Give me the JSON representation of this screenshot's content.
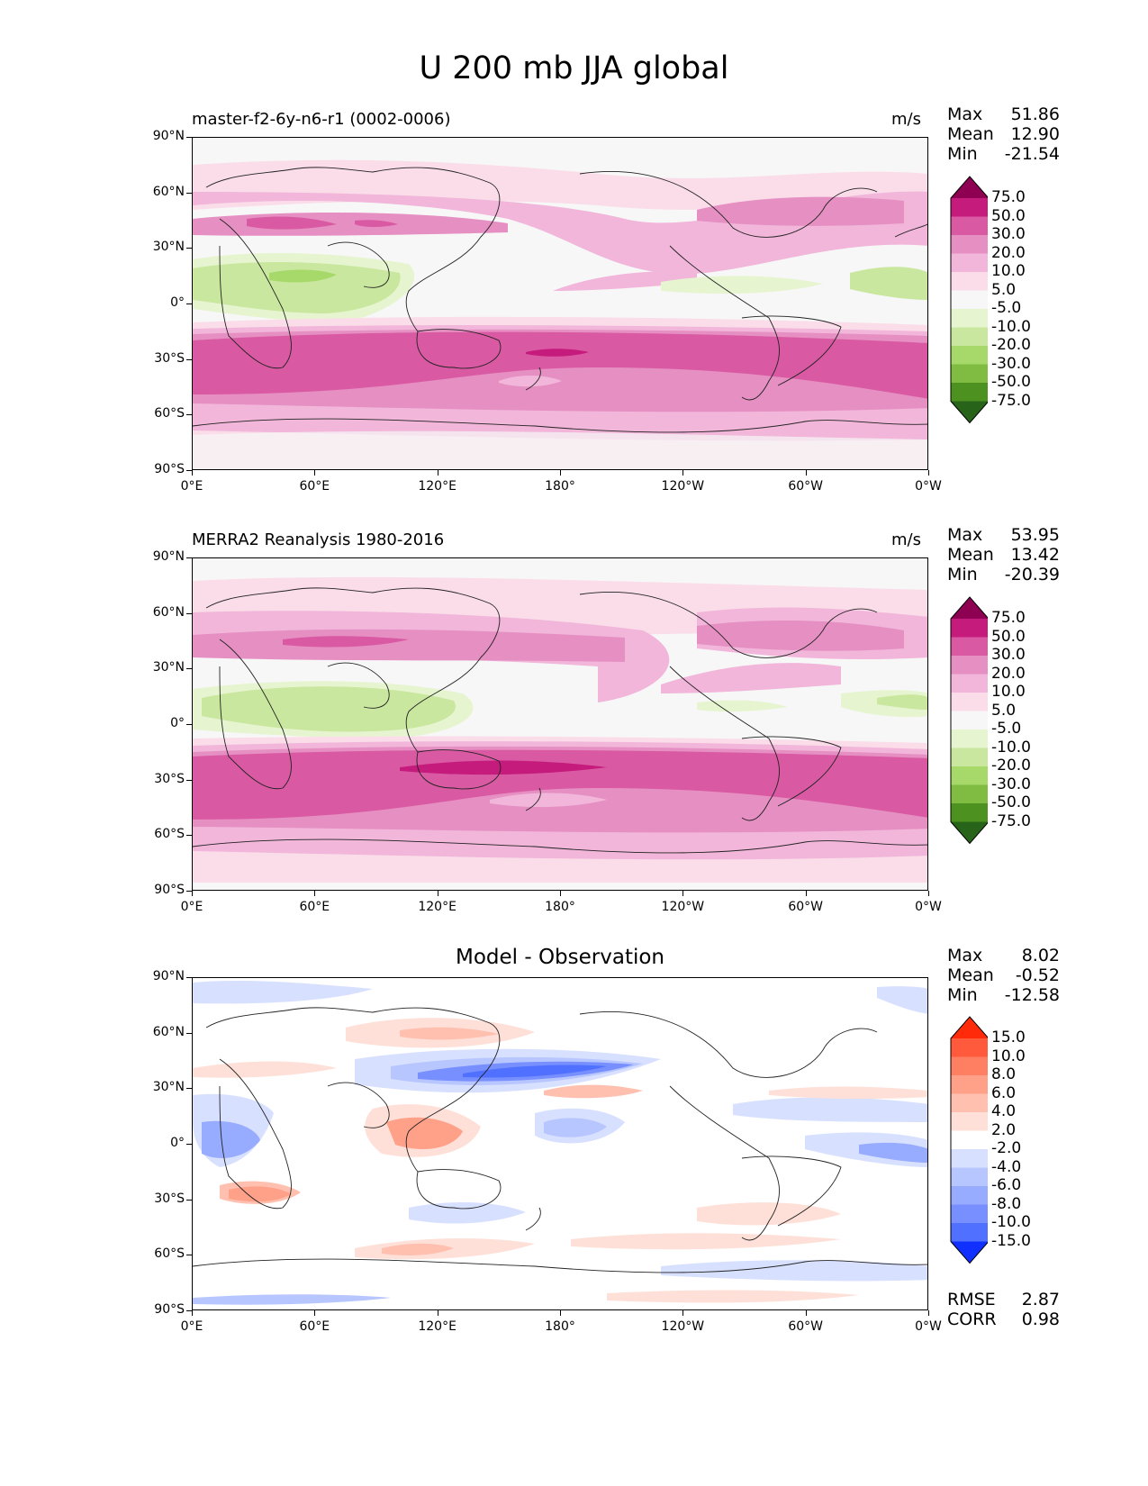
{
  "title": "U 200 mb JJA global",
  "xticks": [
    "0°E",
    "60°E",
    "120°E",
    "180°",
    "120°W",
    "60°W",
    "0°W"
  ],
  "yticks": [
    "90°N",
    "60°N",
    "30°N",
    "0°",
    "30°S",
    "60°S",
    "90°S"
  ],
  "panels": [
    {
      "left_title": "master-f2-6y-n6-r1 (0002-0006)",
      "center_title": "",
      "units": "m/s",
      "stats": [
        {
          "label": "Max",
          "value": "51.86"
        },
        {
          "label": "Mean",
          "value": "12.90"
        },
        {
          "label": "Min",
          "value": "-21.54"
        }
      ]
    },
    {
      "left_title": "MERRA2 Reanalysis 1980-2016",
      "center_title": "",
      "units": "m/s",
      "stats": [
        {
          "label": "Max",
          "value": "53.95"
        },
        {
          "label": "Mean",
          "value": "13.42"
        },
        {
          "label": "Min",
          "value": "-20.39"
        }
      ]
    },
    {
      "left_title": "",
      "center_title": "Model - Observation",
      "units": "",
      "stats": [
        {
          "label": "Max",
          "value": "8.02"
        },
        {
          "label": "Mean",
          "value": "-0.52"
        },
        {
          "label": "Min",
          "value": "-12.58"
        }
      ],
      "metrics": [
        {
          "label": "RMSE",
          "value": "2.87"
        },
        {
          "label": "CORR",
          "value": "0.98"
        }
      ]
    }
  ],
  "colorbar_main": {
    "labels": [
      "75.0",
      "50.0",
      "30.0",
      "20.0",
      "10.0",
      "5.0",
      "-5.0",
      "-10.0",
      "-20.0",
      "-30.0",
      "-50.0",
      "-75.0"
    ],
    "colors": [
      "#8e0152",
      "#c51b7d",
      "#d95aa3",
      "#e68fc2",
      "#f1b6da",
      "#fadde9",
      "#f7f7f7",
      "#e6f5d0",
      "#c9e79e",
      "#a6d96a",
      "#7fbc41",
      "#4d9221",
      "#276419"
    ]
  },
  "colorbar_diff": {
    "labels": [
      "15.0",
      "10.0",
      "8.0",
      "6.0",
      "4.0",
      "2.0",
      "-2.0",
      "-4.0",
      "-6.0",
      "-8.0",
      "-10.0",
      "-15.0"
    ],
    "colors": [
      "#ff2a0a",
      "#ff5a3c",
      "#ff7f62",
      "#ffa089",
      "#ffc0b0",
      "#ffe0d8",
      "#ffffff",
      "#d8e0ff",
      "#b8c6ff",
      "#98acff",
      "#7890ff",
      "#5070ff",
      "#1030ff"
    ]
  },
  "chart_data": [
    {
      "type": "heatmap",
      "title": "master-f2-6y-n6-r1 (0002-0006)",
      "variable": "U 200 mb JJA",
      "units": "m/s",
      "xlim": [
        0,
        360
      ],
      "ylim": [
        -90,
        90
      ],
      "xticks": [
        "0°E",
        "60°E",
        "120°E",
        "180°",
        "120°W",
        "60°W",
        "0°W"
      ],
      "yticks": [
        "90°N",
        "60°N",
        "30°N",
        "0°",
        "30°S",
        "60°S",
        "90°S"
      ],
      "levels": [
        -75,
        -50,
        -30,
        -20,
        -10,
        -5,
        5,
        10,
        20,
        30,
        50,
        75
      ],
      "stats": {
        "max": 51.86,
        "mean": 12.9,
        "min": -21.54
      }
    },
    {
      "type": "heatmap",
      "title": "MERRA2 Reanalysis 1980-2016",
      "variable": "U 200 mb JJA",
      "units": "m/s",
      "xlim": [
        0,
        360
      ],
      "ylim": [
        -90,
        90
      ],
      "levels": [
        -75,
        -50,
        -30,
        -20,
        -10,
        -5,
        5,
        10,
        20,
        30,
        50,
        75
      ],
      "stats": {
        "max": 53.95,
        "mean": 13.42,
        "min": -20.39
      }
    },
    {
      "type": "heatmap",
      "title": "Model - Observation",
      "xlim": [
        0,
        360
      ],
      "ylim": [
        -90,
        90
      ],
      "levels": [
        -15,
        -10,
        -8,
        -6,
        -4,
        -2,
        2,
        4,
        6,
        8,
        10,
        15
      ],
      "stats": {
        "max": 8.02,
        "mean": -0.52,
        "min": -12.58
      },
      "metrics": {
        "rmse": 2.87,
        "corr": 0.98
      }
    }
  ]
}
